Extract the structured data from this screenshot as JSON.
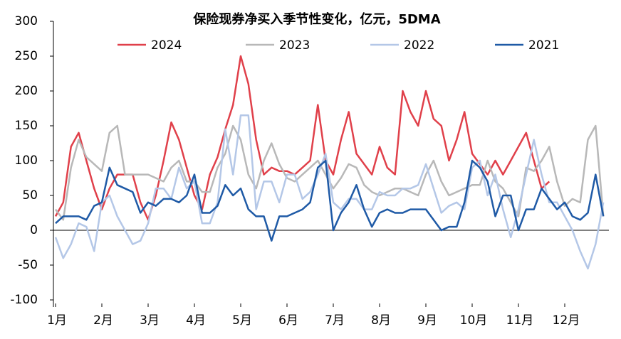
{
  "chart_data": {
    "type": "line",
    "title": "保险现券净买入季节性变化，亿元，5DMA",
    "categories": [
      "1月",
      null,
      null,
      null,
      null,
      null,
      "2月",
      null,
      null,
      null,
      null,
      null,
      "3月",
      null,
      null,
      null,
      null,
      null,
      "4月",
      null,
      null,
      null,
      null,
      null,
      "5月",
      null,
      null,
      null,
      null,
      null,
      "6月",
      null,
      null,
      null,
      null,
      null,
      "7月",
      null,
      null,
      null,
      null,
      null,
      "8月",
      null,
      null,
      null,
      null,
      null,
      "9月",
      null,
      null,
      null,
      null,
      null,
      "10月",
      null,
      null,
      null,
      null,
      null,
      "11月",
      null,
      null,
      null,
      null,
      null,
      "12月",
      null,
      null,
      null,
      null,
      null
    ],
    "ylim": [
      -100,
      300
    ],
    "yticks": [
      -100,
      -50,
      0,
      50,
      100,
      150,
      200,
      250,
      300
    ],
    "grid": false,
    "legend": "top",
    "series": [
      {
        "name": "2024",
        "color": "#e0404a",
        "values": [
          20,
          40,
          120,
          140,
          100,
          60,
          30,
          60,
          80,
          80,
          80,
          40,
          15,
          50,
          100,
          155,
          130,
          90,
          50,
          30,
          80,
          105,
          145,
          180,
          250,
          210,
          130,
          80,
          90,
          85,
          85,
          80,
          90,
          100,
          180,
          100,
          80,
          130,
          170,
          110,
          95,
          80,
          120,
          90,
          80,
          200,
          170,
          150,
          200,
          160,
          150,
          100,
          130,
          170,
          110,
          95,
          80,
          100,
          80,
          100,
          120,
          140,
          100,
          60,
          70,
          null,
          null,
          null,
          null,
          null,
          null,
          null
        ]
      },
      {
        "name": "2023",
        "color": "#b8b8b8",
        "values": [
          30,
          15,
          90,
          130,
          105,
          95,
          85,
          140,
          150,
          80,
          80,
          80,
          80,
          75,
          70,
          90,
          100,
          70,
          70,
          55,
          55,
          90,
          110,
          150,
          130,
          80,
          60,
          100,
          125,
          95,
          75,
          70,
          80,
          90,
          100,
          80,
          60,
          75,
          95,
          90,
          65,
          55,
          50,
          55,
          60,
          60,
          55,
          50,
          80,
          100,
          70,
          50,
          55,
          60,
          65,
          65,
          100,
          70,
          60,
          40,
          20,
          90,
          85,
          100,
          120,
          70,
          35,
          45,
          40,
          130,
          150,
          20
        ]
      },
      {
        "name": "2022",
        "color": "#b4c7e7",
        "values": [
          -10,
          -40,
          -20,
          10,
          5,
          -30,
          40,
          50,
          20,
          0,
          -20,
          -15,
          10,
          60,
          60,
          45,
          90,
          60,
          70,
          10,
          10,
          40,
          145,
          80,
          165,
          165,
          30,
          70,
          70,
          40,
          80,
          80,
          45,
          55,
          80,
          110,
          40,
          30,
          45,
          45,
          30,
          30,
          55,
          50,
          50,
          60,
          60,
          65,
          95,
          60,
          25,
          35,
          40,
          30,
          90,
          100,
          50,
          80,
          30,
          -10,
          30,
          80,
          130,
          80,
          40,
          40,
          20,
          0,
          -30,
          -55,
          -20,
          40
        ]
      },
      {
        "name": "2021",
        "color": "#1f5aa6",
        "values": [
          10,
          20,
          20,
          20,
          15,
          35,
          40,
          90,
          65,
          60,
          55,
          25,
          40,
          35,
          45,
          45,
          40,
          50,
          80,
          25,
          25,
          35,
          65,
          50,
          60,
          30,
          20,
          20,
          -15,
          20,
          20,
          25,
          30,
          40,
          90,
          100,
          0,
          25,
          40,
          65,
          30,
          5,
          25,
          30,
          25,
          25,
          30,
          30,
          30,
          15,
          0,
          5,
          5,
          40,
          100,
          90,
          70,
          20,
          50,
          50,
          0,
          30,
          30,
          60,
          45,
          30,
          40,
          20,
          15,
          25,
          80,
          20
        ]
      }
    ]
  }
}
